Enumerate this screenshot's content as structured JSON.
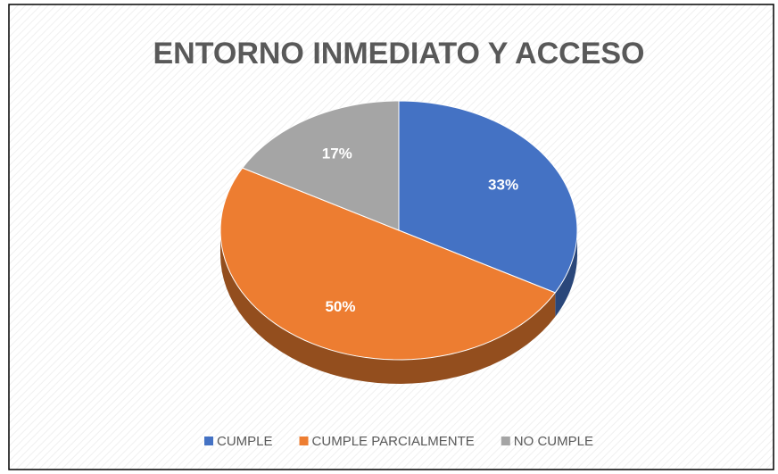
{
  "chart_data": {
    "type": "pie",
    "title": "ENTORNO INMEDIATO Y ACCESO",
    "categories": [
      "CUMPLE",
      "CUMPLE PARCIALMENTE",
      "NO CUMPLE"
    ],
    "values": [
      33,
      50,
      17
    ],
    "value_labels": [
      "33%",
      "50%",
      "17%"
    ],
    "colors": [
      "#4472c4",
      "#ed7d31",
      "#a5a5a5"
    ],
    "legend": "bottom"
  }
}
